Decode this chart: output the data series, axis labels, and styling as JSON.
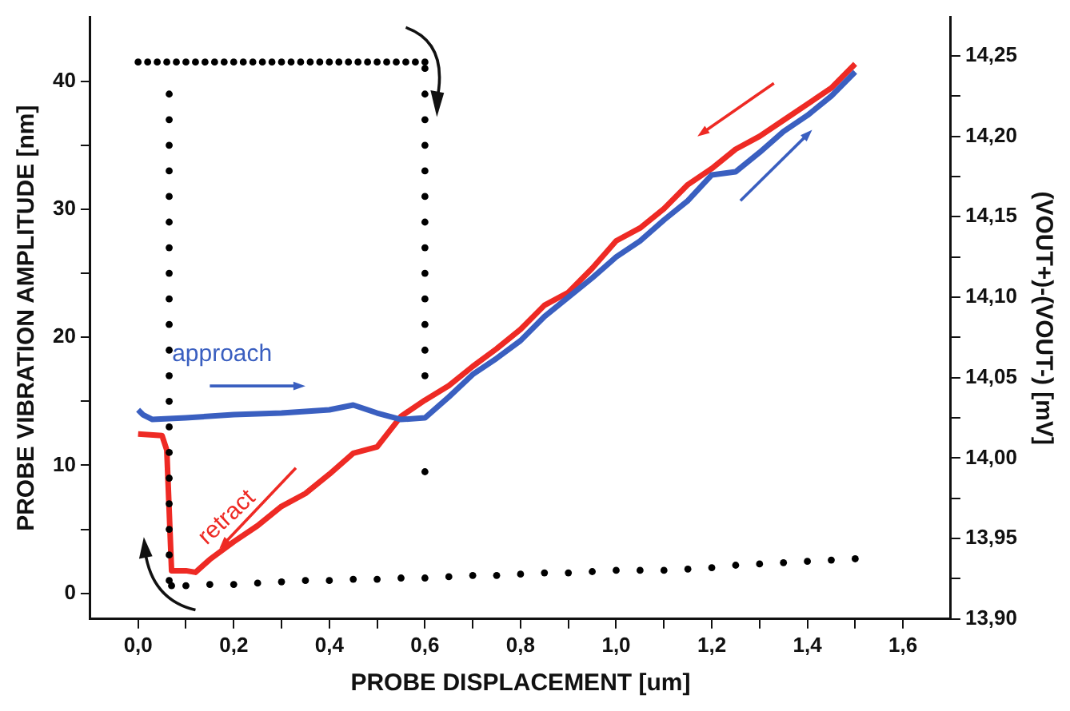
{
  "chart_data": {
    "type": "scatter",
    "xlabel": "PROBE DISPLACEMENT [um]",
    "ylabel": "PROBE VIBRATION AMPLITUDE [nm]",
    "y2label": "(VOUT+)-(VOUT-) [mV]",
    "xlim": [
      -0.1,
      1.7
    ],
    "xticks": [
      {
        "value": 0,
        "label": "0,0"
      },
      {
        "value": 0.1,
        "label": null
      },
      {
        "value": 0.2,
        "label": "0,2"
      },
      {
        "value": 0.3,
        "label": null
      },
      {
        "value": 0.4,
        "label": "0,4"
      },
      {
        "value": 0.5,
        "label": null
      },
      {
        "value": 0.6,
        "label": "0,6"
      },
      {
        "value": 0.7,
        "label": null
      },
      {
        "value": 0.8,
        "label": "0,8"
      },
      {
        "value": 0.9,
        "label": null
      },
      {
        "value": 1.0,
        "label": "1,0"
      },
      {
        "value": 1.1,
        "label": null
      },
      {
        "value": 1.2,
        "label": "1,2"
      },
      {
        "value": 1.3,
        "label": null
      },
      {
        "value": 1.4,
        "label": "1,4"
      },
      {
        "value": 1.5,
        "label": null
      },
      {
        "value": 1.6,
        "label": "1,6"
      }
    ],
    "ylim": [
      -2,
      45
    ],
    "yticks": [
      0,
      {
        "value": 5,
        "label": null
      },
      10,
      {
        "value": 15,
        "label": null
      },
      20,
      {
        "value": 25,
        "label": null
      },
      30,
      {
        "value": 35,
        "label": null
      },
      40
    ],
    "y2lim": [
      13.9,
      14.274
    ],
    "y2ticks": [
      {
        "value": 13.9,
        "label": "13,90"
      },
      {
        "value": 13.925,
        "label": null
      },
      {
        "value": 13.95,
        "label": "13,95"
      },
      {
        "value": 13.975,
        "label": null
      },
      {
        "value": 14.0,
        "label": "14,00"
      },
      {
        "value": 14.025,
        "label": null
      },
      {
        "value": 14.05,
        "label": "14,05"
      },
      {
        "value": 14.075,
        "label": null
      },
      {
        "value": 14.1,
        "label": "14,10"
      },
      {
        "value": 14.125,
        "label": null
      },
      {
        "value": 14.15,
        "label": "14,15"
      },
      {
        "value": 14.175,
        "label": null
      },
      {
        "value": 14.2,
        "label": "14,20"
      },
      {
        "value": 14.225,
        "label": null
      },
      {
        "value": 14.25,
        "label": "14,25"
      }
    ],
    "grid": false,
    "legend": false,
    "series": [
      {
        "marker": "circle",
        "color": "#000000",
        "x": [
          0,
          0.02,
          0.04,
          0.06,
          0.08,
          0.1,
          0.12,
          0.14,
          0.16,
          0.18,
          0.2,
          0.22,
          0.24,
          0.26,
          0.28,
          0.3,
          0.32,
          0.34,
          0.36,
          0.38,
          0.4,
          0.42,
          0.44,
          0.46,
          0.48,
          0.5,
          0.52,
          0.54,
          0.56,
          0.58,
          0.6,
          0.6,
          0.6,
          0.6,
          0.6,
          0.6,
          0.6,
          0.6,
          0.6,
          0.6,
          0.6,
          0.6,
          0.6,
          0.6,
          0.6,
          0.065,
          0.065,
          0.065,
          0.065,
          0.065,
          0.065,
          0.065,
          0.065,
          0.065,
          0.065,
          0.065,
          0.065,
          0.065,
          0.065,
          0.065,
          0.065,
          0.065,
          0.065,
          0.065,
          0.065,
          0.07,
          0.1,
          0.15,
          0.2,
          0.25,
          0.3,
          0.35,
          0.4,
          0.45,
          0.5,
          0.55,
          0.6,
          0.65,
          0.7,
          0.75,
          0.8,
          0.85,
          0.9,
          0.95,
          1.0,
          1.05,
          1.1,
          1.15,
          1.2,
          1.25,
          1.3,
          1.35,
          1.4,
          1.45,
          1.5
        ],
        "values": [
          41.5,
          41.5,
          41.5,
          41.5,
          41.5,
          41.5,
          41.5,
          41.5,
          41.5,
          41.5,
          41.5,
          41.5,
          41.5,
          41.5,
          41.5,
          41.5,
          41.5,
          41.5,
          41.5,
          41.5,
          41.5,
          41.5,
          41.5,
          41.5,
          41.5,
          41.5,
          41.5,
          41.5,
          41.5,
          41.5,
          41.5,
          41,
          39,
          37,
          35,
          33,
          31,
          29,
          27,
          25,
          23,
          21,
          19,
          17,
          9.5,
          39,
          37,
          35,
          33,
          31,
          29,
          27,
          25,
          23,
          21,
          19,
          17,
          15,
          13,
          11,
          9,
          7,
          5,
          3,
          1,
          0.6,
          0.6,
          0.7,
          0.7,
          0.8,
          0.9,
          1.0,
          1.0,
          1.1,
          1.1,
          1.2,
          1.2,
          1.3,
          1.4,
          1.4,
          1.5,
          1.6,
          1.6,
          1.7,
          1.8,
          1.8,
          1.8,
          1.9,
          2.0,
          2.2,
          2.3,
          2.4,
          2.5,
          2.6,
          2.7
        ]
      },
      {
        "type": "line",
        "axis": "y2",
        "marker": "none",
        "line_style": "solid",
        "color": "#3a5fc0",
        "x": [
          0,
          0.01,
          0.03,
          0.1,
          0.2,
          0.3,
          0.4,
          0.45,
          0.5,
          0.55,
          0.6,
          0.65,
          0.7,
          0.75,
          0.8,
          0.85,
          0.9,
          0.95,
          1.0,
          1.05,
          1.1,
          1.15,
          1.2,
          1.25,
          1.3,
          1.35,
          1.4,
          1.45,
          1.5
        ],
        "values": [
          14.03,
          14.027,
          14.024,
          14.025,
          14.027,
          14.028,
          14.03,
          14.033,
          14.028,
          14.024,
          14.025,
          14.038,
          14.052,
          14.062,
          14.073,
          14.088,
          14.1,
          14.112,
          14.125,
          14.135,
          14.148,
          14.16,
          14.176,
          14.178,
          14.19,
          14.203,
          14.213,
          14.225,
          14.24
        ]
      },
      {
        "type": "line",
        "axis": "y2",
        "marker": "none",
        "line_style": "solid",
        "color": "#ee2a24",
        "x": [
          0,
          0.05,
          0.06,
          0.07,
          0.1,
          0.12,
          0.15,
          0.2,
          0.25,
          0.3,
          0.35,
          0.4,
          0.45,
          0.5,
          0.55,
          0.6,
          0.65,
          0.7,
          0.75,
          0.8,
          0.85,
          0.9,
          0.95,
          1.0,
          1.05,
          1.1,
          1.15,
          1.2,
          1.25,
          1.3,
          1.35,
          1.4,
          1.45,
          1.5
        ],
        "values": [
          14.015,
          14.014,
          14.005,
          13.93,
          13.93,
          13.929,
          13.937,
          13.948,
          13.958,
          13.97,
          13.978,
          13.99,
          14.003,
          14.007,
          14.026,
          14.036,
          14.045,
          14.057,
          14.068,
          14.08,
          14.095,
          14.103,
          14.118,
          14.135,
          14.143,
          14.155,
          14.17,
          14.18,
          14.192,
          14.2,
          14.21,
          14.22,
          14.23,
          14.245
        ]
      }
    ],
    "annotations": [
      "approach",
      "retract"
    ]
  }
}
